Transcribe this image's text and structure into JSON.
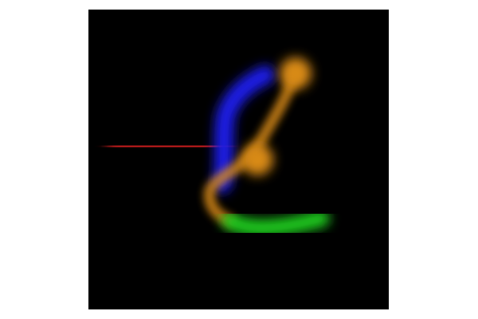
{
  "image": {
    "background_color": "#ffffff",
    "frame_color": "#000000",
    "strokes": [
      {
        "name": "red-stroke",
        "color": "#d01a1a"
      },
      {
        "name": "blue-stroke",
        "color": "#1a1ae6"
      },
      {
        "name": "orange-stroke",
        "color": "#d88a14"
      },
      {
        "name": "green-stroke",
        "color": "#1ec81e"
      }
    ]
  }
}
